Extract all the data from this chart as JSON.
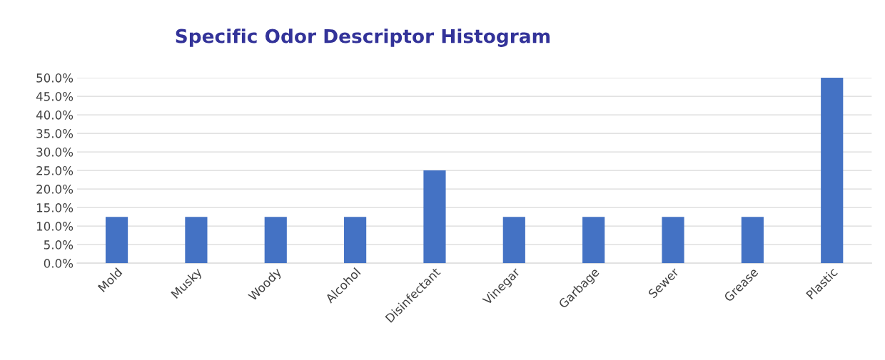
{
  "chart_data": {
    "type": "bar",
    "title": "Specific Odor Descriptor Histogram",
    "categories": [
      "Mold",
      "Musky",
      "Woody",
      "Alcohol",
      "Disinfectant",
      "Vinegar",
      "Garbage",
      "Sewer",
      "Grease",
      "Plastic"
    ],
    "values": [
      12.5,
      12.5,
      12.5,
      12.5,
      25,
      12.5,
      12.5,
      12.5,
      12.5,
      50
    ],
    "color": "#4472c4",
    "ylim": [
      0,
      50
    ],
    "yticks": [
      {
        "value": 0,
        "label": "0.0%"
      },
      {
        "value": 5,
        "label": "5.0%"
      },
      {
        "value": 10,
        "label": "10.0%"
      },
      {
        "value": 15,
        "label": "15.0%"
      },
      {
        "value": 20,
        "label": "20.0%"
      },
      {
        "value": 25,
        "label": "25.0%"
      },
      {
        "value": 30,
        "label": "30.0%"
      },
      {
        "value": 35,
        "label": "35.0%"
      },
      {
        "value": 40,
        "label": "40.0%"
      },
      {
        "value": 45,
        "label": "45.0%"
      },
      {
        "value": 50,
        "label": "50.0%"
      }
    ],
    "grid": "y",
    "legend": false
  }
}
